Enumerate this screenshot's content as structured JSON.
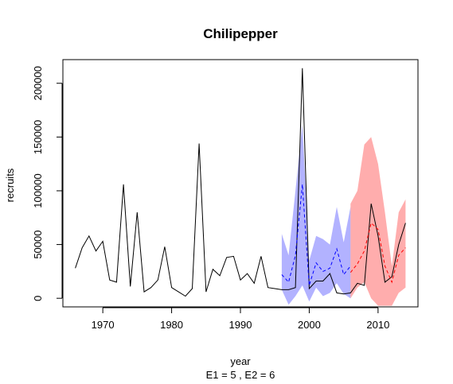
{
  "chart_data": {
    "type": "line",
    "title": "Chilipepper",
    "xlabel": "year",
    "ylabel": "recruits",
    "subtitle": "E1 = 5 , E2 = 6",
    "xlim": [
      1964.2,
      2015.8
    ],
    "ylim": [
      -8000,
      222000
    ],
    "x_ticks": [
      1970,
      1980,
      1990,
      2000,
      2010
    ],
    "y_ticks": [
      0,
      50000,
      100000,
      150000,
      200000
    ],
    "grid": false,
    "legend": "none",
    "observed": {
      "color": "#000000",
      "x": [
        1966,
        1967,
        1968,
        1969,
        1970,
        1971,
        1972,
        1973,
        1974,
        1975,
        1976,
        1977,
        1978,
        1979,
        1980,
        1981,
        1982,
        1983,
        1984,
        1985,
        1986,
        1987,
        1988,
        1989,
        1990,
        1991,
        1992,
        1993,
        1994,
        1995,
        1996,
        1997,
        1998,
        1999,
        2000,
        2001,
        2002,
        2003,
        2004,
        2005,
        2006,
        2007,
        2008,
        2009,
        2010,
        2011,
        2012,
        2013,
        2014
      ],
      "y": [
        28000,
        47000,
        58000,
        44000,
        53000,
        17000,
        15000,
        106000,
        11000,
        80000,
        6000,
        10000,
        17000,
        48000,
        10000,
        6000,
        2000,
        9000,
        144000,
        6000,
        27000,
        21000,
        38000,
        39000,
        17000,
        23000,
        14000,
        39000,
        10000,
        9000,
        8000,
        8000,
        10000,
        214000,
        9000,
        16000,
        16000,
        23000,
        5000,
        4000,
        5000,
        14000,
        12000,
        88000,
        58000,
        15000,
        20000,
        50000,
        70000
      ]
    },
    "E1": {
      "color": "#0000ff",
      "x": [
        1996,
        1997,
        1998,
        1999,
        2000,
        2001,
        2002,
        2003,
        2004,
        2005,
        2006
      ],
      "mean": [
        22000,
        15000,
        40000,
        106000,
        12000,
        33000,
        25000,
        28000,
        46000,
        22000,
        30000
      ],
      "lower": [
        8000,
        -6000,
        2000,
        12000,
        -3000,
        10000,
        2000,
        5000,
        14000,
        4000,
        0
      ],
      "upper": [
        60000,
        40000,
        100000,
        162000,
        35000,
        58000,
        55000,
        50000,
        85000,
        52000,
        85000
      ]
    },
    "E2": {
      "color": "#ff0000",
      "x": [
        2006,
        2007,
        2008,
        2009,
        2010,
        2011,
        2012,
        2013,
        2014
      ],
      "mean": [
        24000,
        32000,
        44000,
        70000,
        64000,
        30000,
        15000,
        40000,
        47000
      ],
      "lower": [
        0,
        10000,
        15000,
        0,
        -7000,
        -7000,
        -7000,
        5000,
        10000
      ],
      "upper": [
        88000,
        100000,
        143000,
        150000,
        125000,
        80000,
        30000,
        80000,
        92000
      ]
    }
  }
}
